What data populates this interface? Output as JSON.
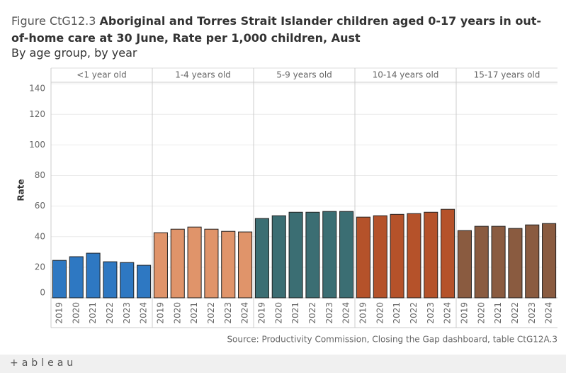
{
  "chart_data": {
    "type": "bar",
    "title_prefix": "Figure CtG12.3",
    "title": "Aboriginal and Torres Strait Islander children aged 0-17 years in out-of-home care at 30 June, Rate per 1,000 children, Aust",
    "subtitle": "By age group, by year",
    "y_label": "Rate",
    "source": "Source: Productivity Commission, Closing the Gap dashboard, table CtG12A.3",
    "logo": "+ableau",
    "ylim": [
      0,
      141
    ],
    "yticks": [
      0,
      20,
      40,
      60,
      80,
      100,
      120,
      140
    ],
    "grid": true,
    "facets": [
      {
        "name": "<1 year old",
        "color": "#2e78c2",
        "categories": [
          "2019",
          "2020",
          "2021",
          "2022",
          "2023",
          "2024"
        ],
        "values": [
          24.5,
          26.9,
          29.2,
          23.6,
          23.1,
          21.3
        ]
      },
      {
        "name": "1-4 years old",
        "color": "#e0946a",
        "categories": [
          "2019",
          "2020",
          "2021",
          "2022",
          "2023",
          "2024"
        ],
        "values": [
          42.6,
          44.9,
          46.3,
          44.9,
          43.5,
          43.1
        ]
      },
      {
        "name": "5-9 years old",
        "color": "#3b6e73",
        "categories": [
          "2019",
          "2020",
          "2021",
          "2022",
          "2023",
          "2024"
        ],
        "values": [
          51.9,
          53.7,
          56.0,
          56.0,
          56.5,
          56.5
        ]
      },
      {
        "name": "10-14 years old",
        "color": "#b5522a",
        "categories": [
          "2019",
          "2020",
          "2021",
          "2022",
          "2023",
          "2024"
        ],
        "values": [
          52.8,
          53.7,
          54.6,
          55.1,
          56.0,
          57.9
        ]
      },
      {
        "name": "15-17 years old",
        "color": "#8a5b40",
        "categories": [
          "2019",
          "2020",
          "2021",
          "2022",
          "2023",
          "2024"
        ],
        "values": [
          44.0,
          46.8,
          46.8,
          45.4,
          47.7,
          48.6
        ]
      }
    ]
  }
}
